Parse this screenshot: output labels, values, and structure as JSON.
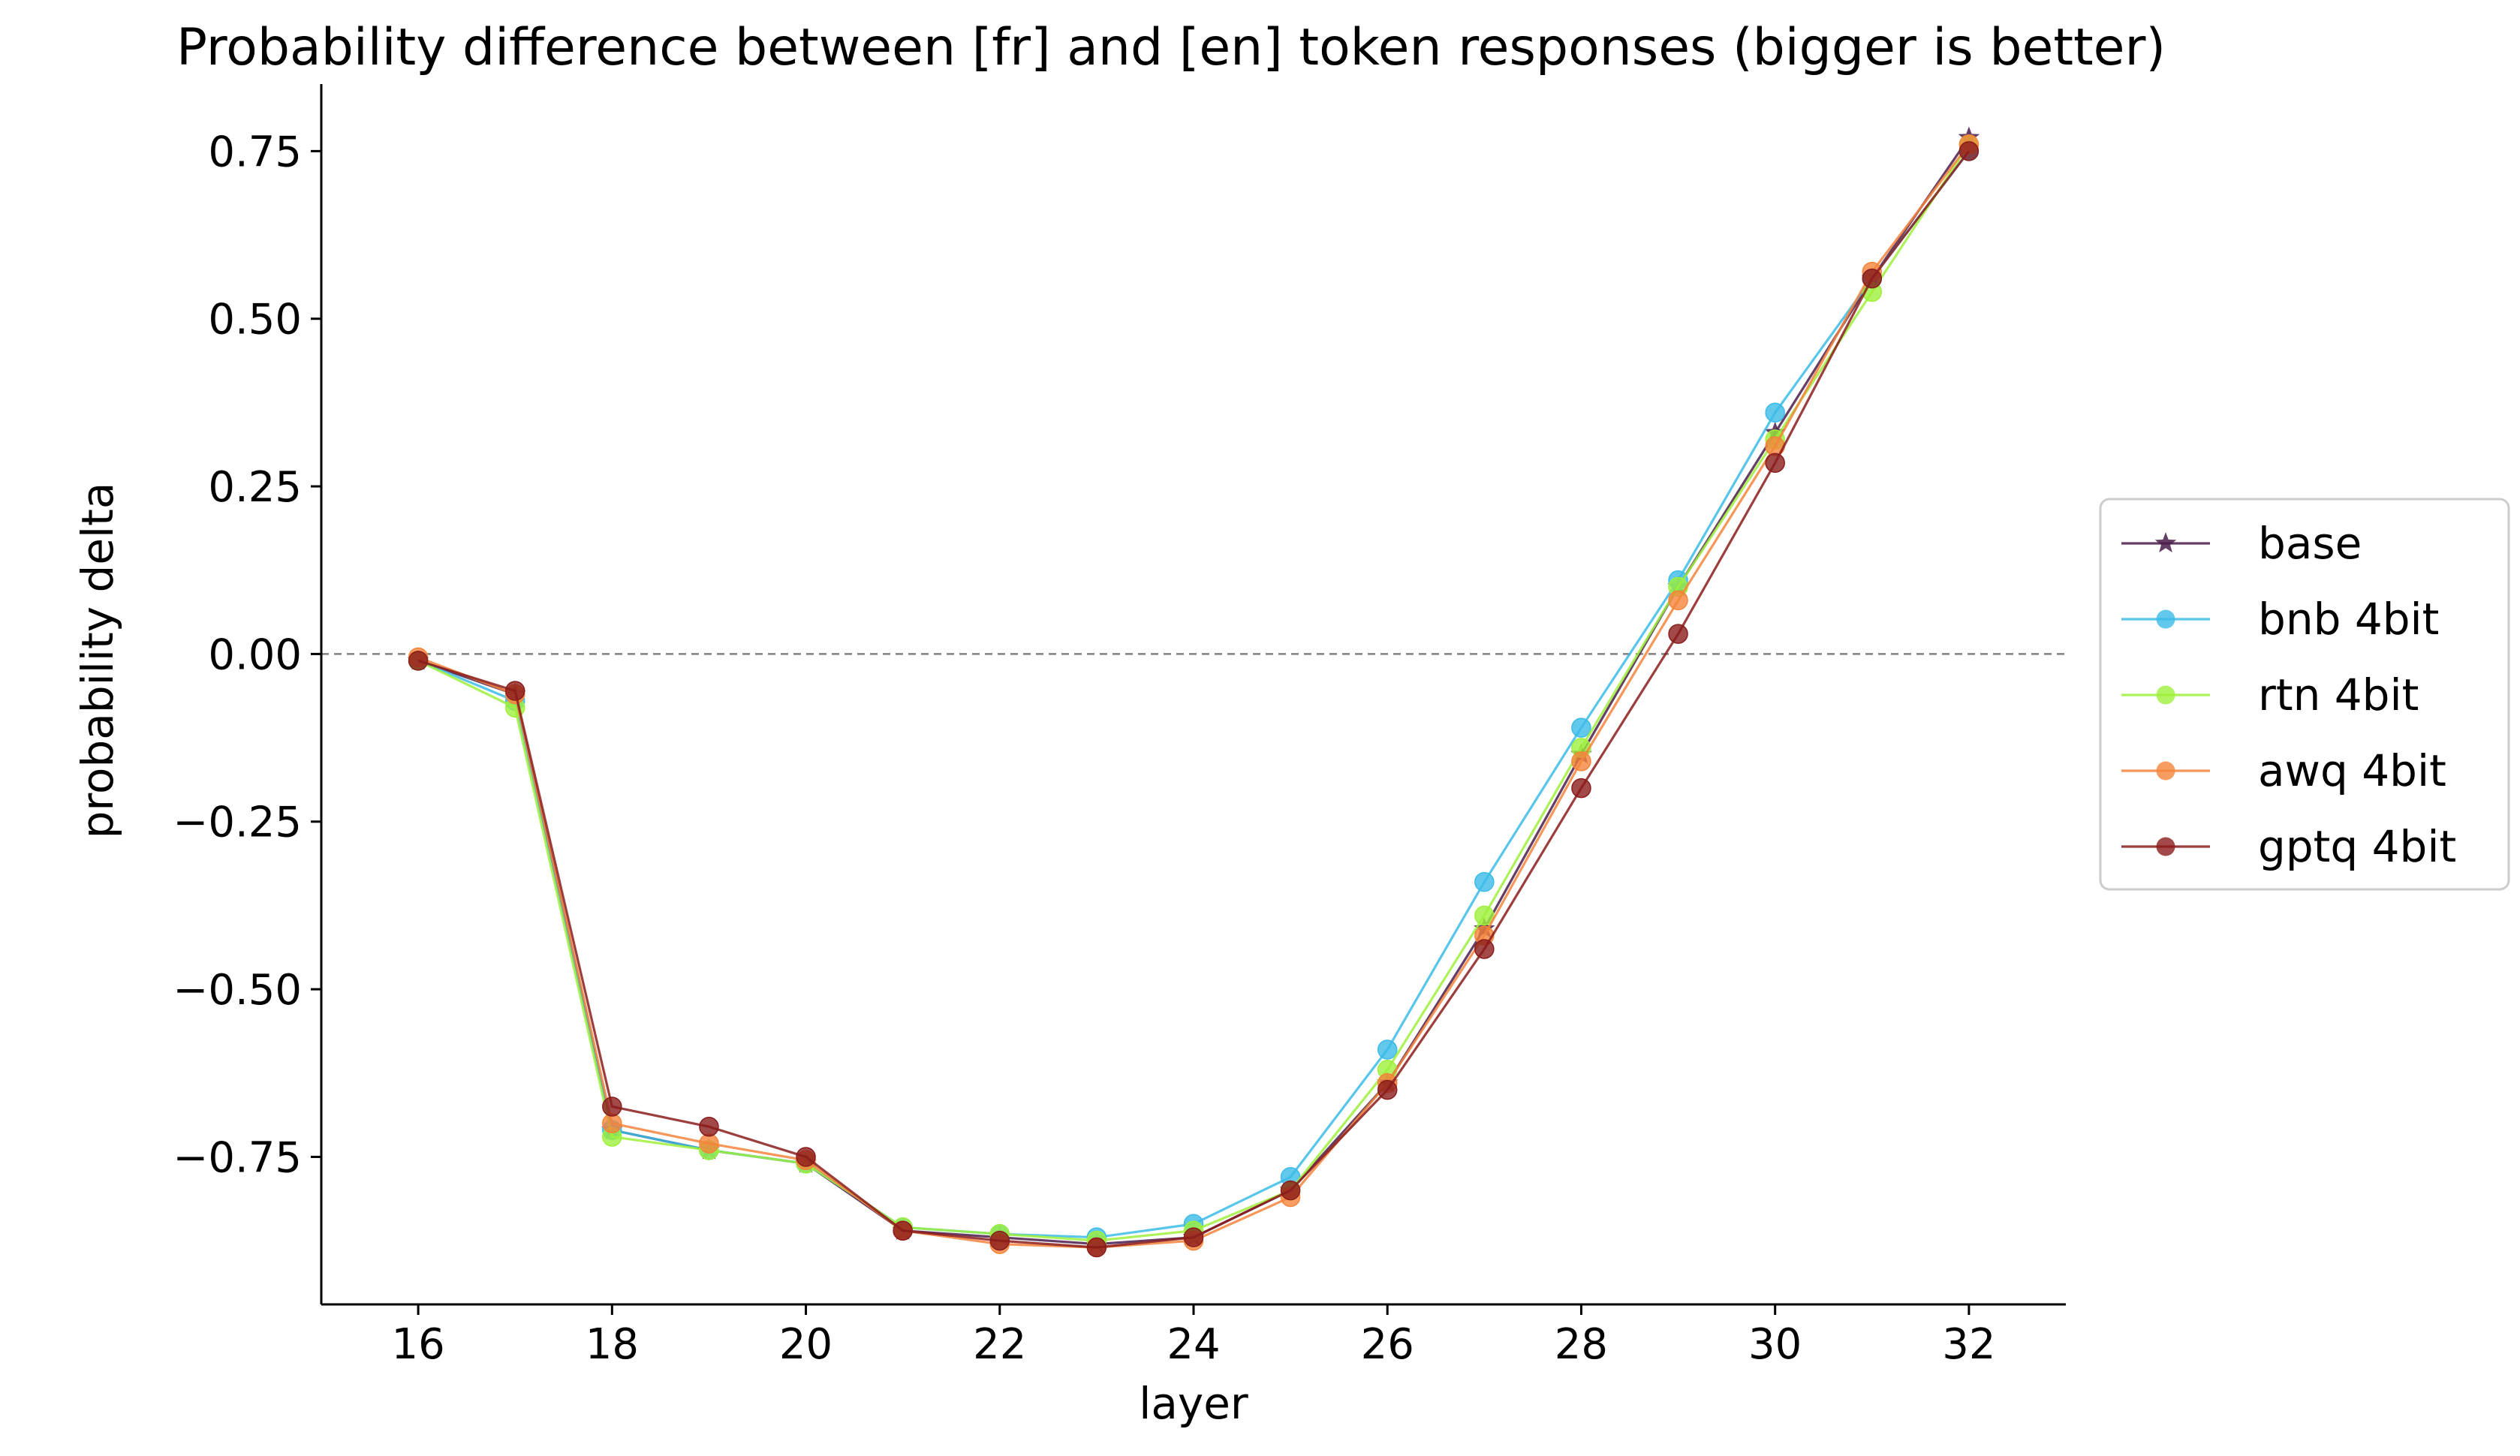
{
  "chart_data": {
    "type": "line",
    "title": "Probability difference between [fr] and [en] token responses (bigger is better)",
    "xlabel": "layer",
    "ylabel": "probability delta",
    "xlim": [
      15,
      33
    ],
    "ylim": [
      -0.97,
      0.85
    ],
    "x_ticks": [
      16,
      18,
      20,
      22,
      24,
      26,
      28,
      30,
      32
    ],
    "y_ticks": [
      0.75,
      0.5,
      0.25,
      0.0,
      -0.25,
      -0.5,
      -0.75
    ],
    "y_tick_labels": [
      "0.75",
      "0.50",
      "0.25",
      "0.00",
      "−0.25",
      "−0.50",
      "−0.75"
    ],
    "reference_line": {
      "y": 0.0,
      "style": "dashed",
      "color": "#808080"
    },
    "legend_position": "center-right (outside plot)",
    "grid": false,
    "x": [
      16,
      17,
      18,
      19,
      20,
      21,
      22,
      23,
      24,
      25,
      26,
      27,
      28,
      29,
      30,
      31,
      32
    ],
    "series": [
      {
        "name": "base",
        "color": "#4a1c4a",
        "marker": "star",
        "values": [
          -0.01,
          -0.06,
          -0.71,
          -0.74,
          -0.76,
          -0.86,
          -0.87,
          -0.88,
          -0.87,
          -0.8,
          -0.64,
          -0.41,
          -0.15,
          0.1,
          0.33,
          0.56,
          0.77
        ]
      },
      {
        "name": "bnb 4bit",
        "color": "#3bbbe8",
        "marker": "circle",
        "values": [
          -0.01,
          -0.07,
          -0.71,
          -0.74,
          -0.76,
          -0.855,
          -0.865,
          -0.87,
          -0.85,
          -0.78,
          -0.59,
          -0.34,
          -0.11,
          0.11,
          0.36,
          0.56,
          0.75
        ]
      },
      {
        "name": "rtn 4bit",
        "color": "#9ef03b",
        "marker": "circle",
        "values": [
          -0.01,
          -0.08,
          -0.72,
          -0.74,
          -0.76,
          -0.855,
          -0.865,
          -0.875,
          -0.86,
          -0.8,
          -0.62,
          -0.39,
          -0.14,
          0.1,
          0.32,
          0.54,
          0.76
        ]
      },
      {
        "name": "awq 4bit",
        "color": "#f5843b",
        "marker": "circle",
        "values": [
          -0.005,
          -0.06,
          -0.7,
          -0.73,
          -0.755,
          -0.86,
          -0.88,
          -0.885,
          -0.875,
          -0.81,
          -0.64,
          -0.42,
          -0.16,
          0.08,
          0.31,
          0.57,
          0.76
        ]
      },
      {
        "name": "gptq 4bit",
        "color": "#8b1c1c",
        "marker": "circle",
        "values": [
          -0.01,
          -0.055,
          -0.675,
          -0.705,
          -0.75,
          -0.86,
          -0.875,
          -0.885,
          -0.87,
          -0.8,
          -0.65,
          -0.44,
          -0.2,
          0.03,
          0.285,
          0.56,
          0.75
        ]
      }
    ]
  }
}
